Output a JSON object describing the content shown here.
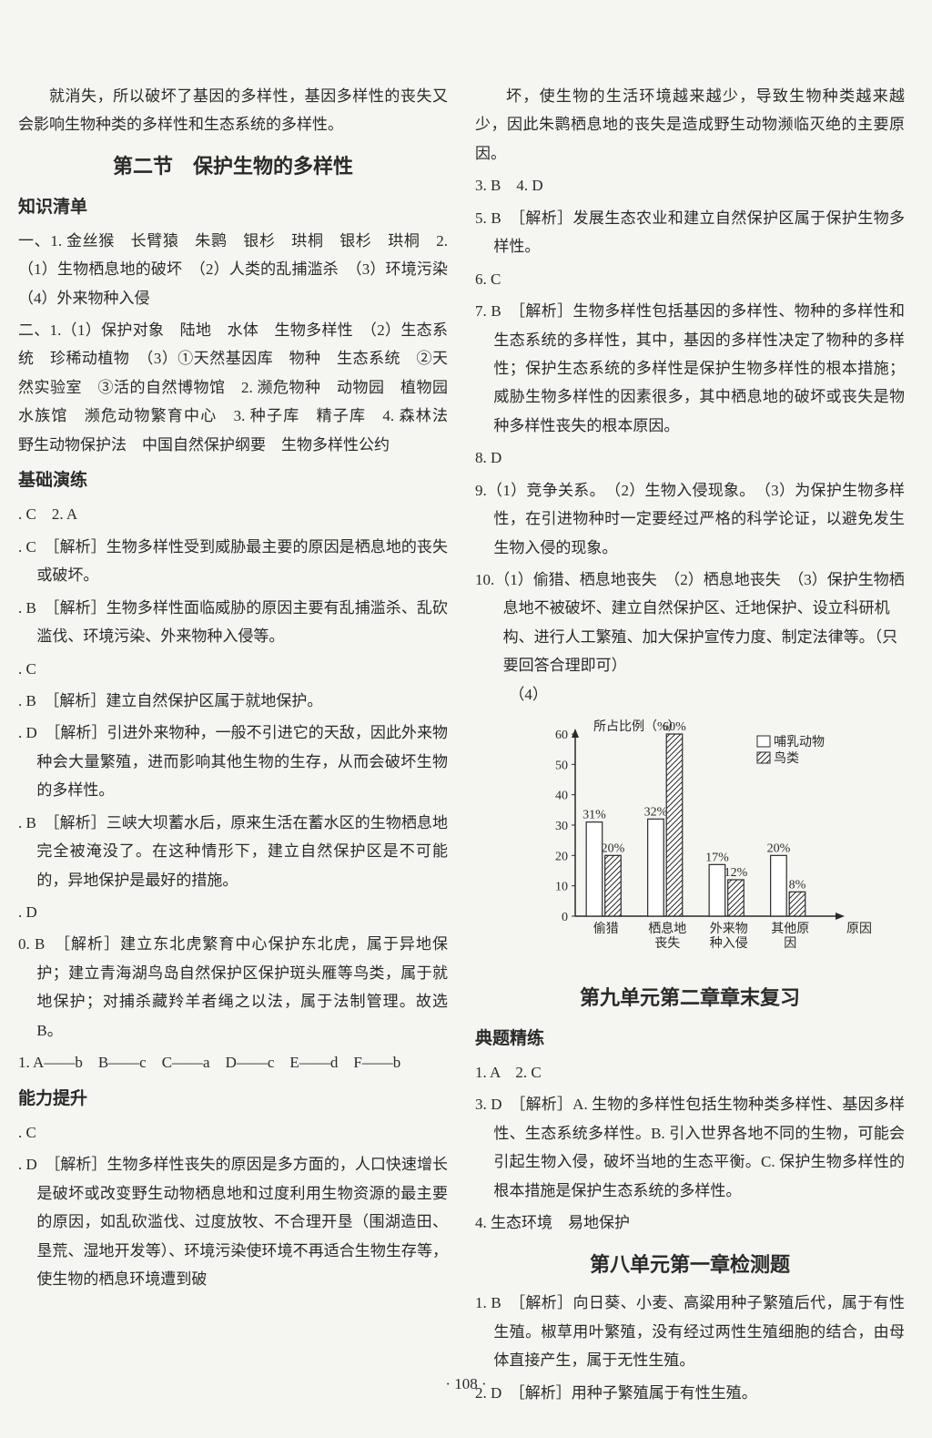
{
  "left": {
    "intro": "就消失，所以破坏了基因的多样性，基因多样性的丧失又会影响生物种类的多样性和生态系统的多样性。",
    "section_title": "第二节　保护生物的多样性",
    "knowledge_header": "知识清单",
    "k1": "一、1. 金丝猴　长臂猿　朱鹮　银杉　珙桐　银杉　珙桐　2.（1）生物栖息地的破坏　（2）人类的乱捕滥杀　（3）环境污染　（4）外来物种入侵",
    "k2": "二、1.（1）保护对象　陆地　水体　生物多样性　（2）生态系统　珍稀动植物　（3）①天然基因库　物种　生态系统　②天然实验室　③活的自然博物馆　2. 濒危物种　动物园　植物园　水族馆　濒危动物繁育中心　3. 种子库　精子库　4. 森林法　野生动物保护法　中国自然保护纲要　生物多样性公约",
    "practice_header": "基础演练",
    "p1": ". C　2. A",
    "p3": ". C　［解析］生物多样性受到威胁最主要的原因是栖息地的丧失或破坏。",
    "p4": ". B　［解析］生物多样性面临威胁的原因主要有乱捕滥杀、乱砍滥伐、环境污染、外来物种入侵等。",
    "p5": ". C",
    "p6": ". B　［解析］建立自然保护区属于就地保护。",
    "p7": ". D　［解析］引进外来物种，一般不引进它的天敌，因此外来物种会大量繁殖，进而影响其他生物的生存，从而会破坏生物的多样性。",
    "p8": ". B　［解析］三峡大坝蓄水后，原来生活在蓄水区的生物栖息地完全被淹没了。在这种情形下，建立自然保护区是不可能的，异地保护是最好的措施。",
    "p9": ". D",
    "p10": "0. B　［解析］建立东北虎繁育中心保护东北虎，属于异地保护；建立青海湖鸟岛自然保护区保护斑头雁等鸟类，属于就地保护；对捕杀藏羚羊者绳之以法，属于法制管理。故选 B。",
    "p11": "1. A——b　B——c　C——a　D——c　E——d　F——b",
    "ability_header": "能力提升",
    "a1": ". C",
    "a2": ". D　［解析］生物多样性丧失的原因是多方面的，人口快速增长是破坏或改变野生动物栖息地和过度利用生物资源的最主要的原因，如乱砍滥伐、过度放牧、不合理开垦（围湖造田、垦荒、湿地开发等）、环境污染使环境不再适合生物生存等，使生物的栖息环境遭到破"
  },
  "right": {
    "cont": "坏，使生物的生活环境越来越少，导致生物种类越来越少，因此朱鹮栖息地的丧失是造成野生动物濒临灭绝的主要原因。",
    "r34": "3. B　4. D",
    "r5": "5. B　［解析］发展生态农业和建立自然保护区属于保护生物多样性。",
    "r6": "6. C",
    "r7": "7. B　［解析］生物多样性包括基因的多样性、物种的多样性和生态系统的多样性，其中，基因的多样性决定了物种的多样性；保护生态系统的多样性是保护生物多样性的根本措施；威胁生物多样性的因素很多，其中栖息地的破坏或丧失是物种多样性丧失的根本原因。",
    "r8": "8. D",
    "r9": "9.（1）竞争关系。　（2）生物入侵现象。　（3）为保护生物多样性，在引进物种时一定要经过严格的科学论证，以避免发生生物入侵的现象。",
    "r10a": "10.（1）偷猎、栖息地丧失　（2）栖息地丧失　（3）保护生物栖息地不被破坏、建立自然保护区、迁地保护、设立科研机构、进行人工繁殖、加大保护宣传力度、制定法律等。（只要回答合理即可）",
    "r10b": "（4）",
    "unit_title": "第九单元第二章章末复习",
    "refine_header": "典题精练",
    "t12": "1. A　2. C",
    "t3": "3. D　［解析］A. 生物的多样性包括生物种类多样性、基因多样性、生态系统多样性。B. 引入世界各地不同的生物，可能会引起生物入侵，破坏当地的生态平衡。C. 保护生物多样性的根本措施是保护生态系统的多样性。",
    "t4": "4. 生态环境　易地保护",
    "test_title": "第八单元第一章检测题",
    "c1": "1. B　［解析］向日葵、小麦、高粱用种子繁殖后代，属于有性生殖。椒草用叶繁殖，没有经过两性生殖细胞的结合，由母体直接产生，属于无性生殖。",
    "c2": "2. D　［解析］用种子繁殖属于有性生殖。"
  },
  "chart": {
    "ylabel": "所占比例（%）",
    "legend1": "哺乳动物",
    "legend2": "鸟类",
    "xlabel": "原因",
    "categories": [
      "偷猎",
      "栖息地丧失",
      "外来物种入侵",
      "其他原因"
    ],
    "values_mammal": [
      31,
      32,
      17,
      20
    ],
    "values_bird": [
      20,
      60,
      12,
      8
    ],
    "ymax": 60,
    "ytick_step": 10,
    "bar_colors": {
      "mammal": "#ffffff",
      "bird_pattern": "hatch"
    },
    "stroke": "#2a2a2a",
    "font_size": 14
  },
  "page_number": "· 108 ·"
}
